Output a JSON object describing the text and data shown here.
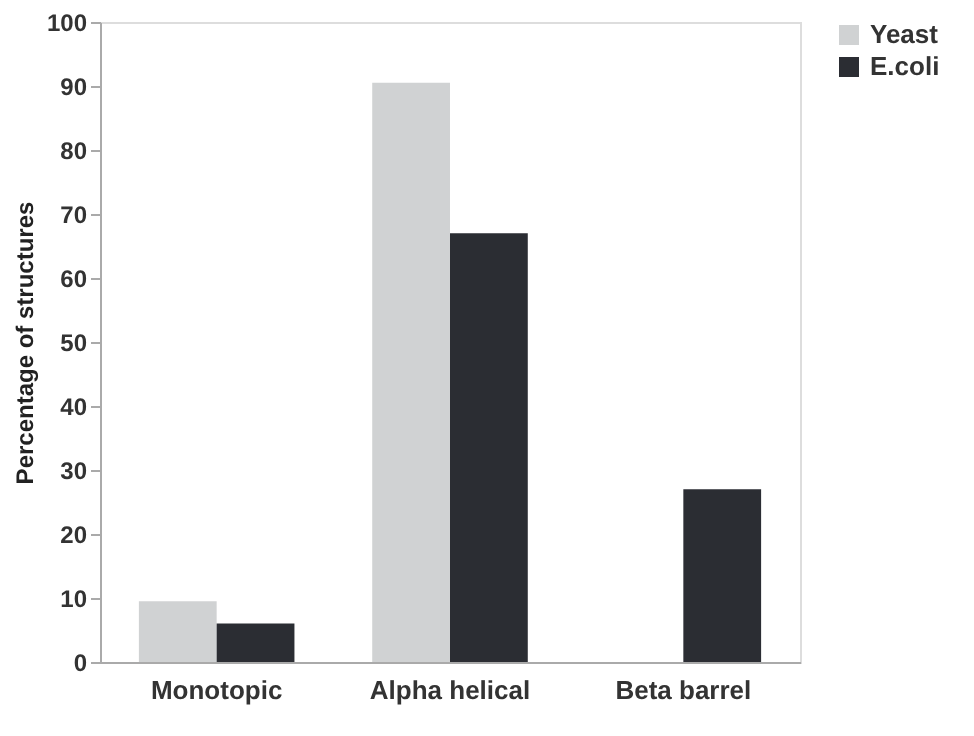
{
  "chart_data": {
    "type": "bar",
    "ylabel": "Percentage of structures",
    "categories": [
      "Monotopic",
      "Alpha helical",
      "Beta barrel"
    ],
    "series": [
      {
        "name": "Yeast",
        "color": "#d0d2d3",
        "values": [
          9.5,
          90.5,
          0
        ]
      },
      {
        "name": "E.coli",
        "color": "#2b2d33",
        "values": [
          6,
          67,
          27
        ]
      }
    ],
    "ylim": [
      0,
      100
    ],
    "yticks": [
      0,
      10,
      20,
      30,
      40,
      50,
      60,
      70,
      80,
      90,
      100
    ],
    "grid": false,
    "legend": "right"
  }
}
